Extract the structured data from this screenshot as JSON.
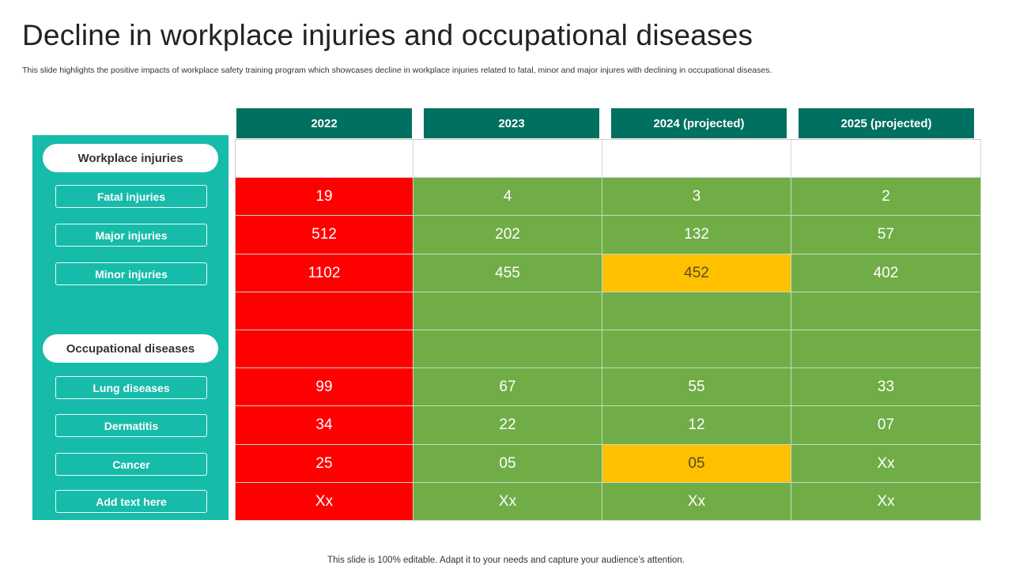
{
  "title": "Decline in workplace injuries and occupational diseases",
  "subtitle": "This slide highlights the positive impacts of workplace safety training program which showcases decline in workplace injuries related to fatal, minor and major injures with declining in occupational diseases.",
  "footer": "This slide is 100% editable. Adapt it to your needs and capture your audience’s attention.",
  "colors": {
    "teal_panel": "#16bca9",
    "header_teal": "#007060",
    "red": "#ff0000",
    "green": "#70ad47",
    "amber": "#ffc000"
  },
  "columns": [
    "2022",
    "2023",
    "2024 (projected)",
    "2025 (projected)"
  ],
  "groups": [
    {
      "label": "Workplace injuries",
      "rows": [
        {
          "label": "Fatal injuries",
          "values": [
            "19",
            "4",
            "3",
            "2"
          ],
          "status": [
            "red",
            "green",
            "green",
            "green"
          ]
        },
        {
          "label": "Major injuries",
          "values": [
            "512",
            "202",
            "132",
            "57"
          ],
          "status": [
            "red",
            "green",
            "green",
            "green"
          ]
        },
        {
          "label": "Minor injuries",
          "values": [
            "1102",
            "455",
            "452",
            "402"
          ],
          "status": [
            "red",
            "green",
            "amber",
            "green"
          ]
        }
      ]
    },
    {
      "label": "Occupational diseases",
      "rows": [
        {
          "label": "Lung diseases",
          "values": [
            "99",
            "67",
            "55",
            "33"
          ],
          "status": [
            "red",
            "green",
            "green",
            "green"
          ]
        },
        {
          "label": "Dermatitis",
          "values": [
            "34",
            "22",
            "12",
            "07"
          ],
          "status": [
            "red",
            "green",
            "green",
            "green"
          ]
        },
        {
          "label": "Cancer",
          "values": [
            "25",
            "05",
            "05",
            "Xx"
          ],
          "status": [
            "red",
            "green",
            "amber",
            "green"
          ]
        },
        {
          "label": "Add text here",
          "values": [
            "Xx",
            "Xx",
            "Xx",
            "Xx"
          ],
          "status": [
            "red",
            "green",
            "green",
            "green"
          ]
        }
      ]
    }
  ]
}
